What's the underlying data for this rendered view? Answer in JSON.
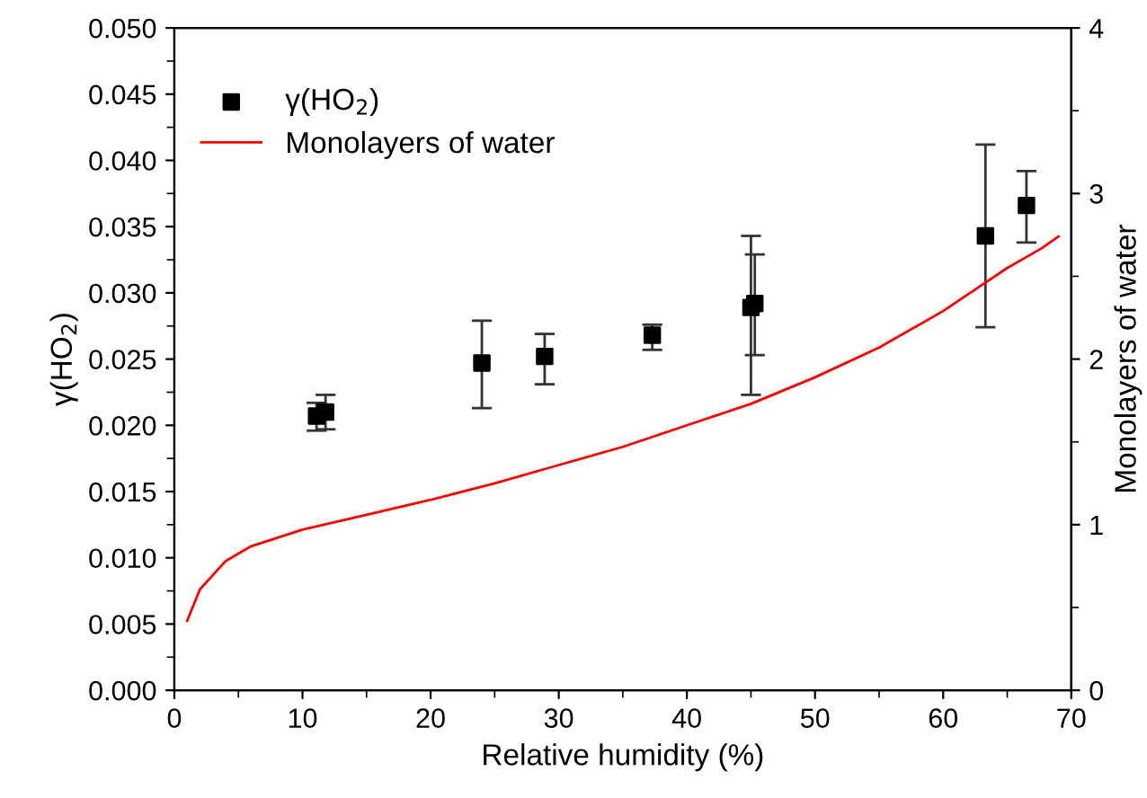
{
  "chart_data": {
    "type": "scatter",
    "xlabel": "Relative humidity (%)",
    "ylabel": "γ(HO$_{2}$)",
    "y2label": "Monolayers of water",
    "xlim": [
      0,
      70
    ],
    "xticks": [
      0,
      10,
      20,
      30,
      40,
      50,
      60,
      70
    ],
    "ylim": [
      0,
      0.05
    ],
    "yticks": [
      {
        "value": 0,
        "label": "0.000"
      },
      {
        "value": 0.005,
        "label": "0.005"
      },
      {
        "value": 0.01,
        "label": "0.010"
      },
      {
        "value": 0.015,
        "label": "0.015"
      },
      {
        "value": 0.02,
        "label": "0.020"
      },
      {
        "value": 0.025,
        "label": "0.025"
      },
      {
        "value": 0.03,
        "label": "0.030"
      },
      {
        "value": 0.035,
        "label": "0.035"
      },
      {
        "value": 0.04,
        "label": "0.040"
      },
      {
        "value": 0.045,
        "label": "0.045"
      },
      {
        "value": 0.05,
        "label": "0.050"
      }
    ],
    "y2lim": [
      0,
      4
    ],
    "y2ticks": [
      0,
      1,
      2,
      3,
      4
    ],
    "legend": "top left",
    "grid": false,
    "series": [
      {
        "name": "γ(HO$_{2}$)",
        "marker": "square",
        "color": "#000000",
        "x": [
          11.1,
          11.8,
          24.0,
          28.9,
          37.3,
          45.0,
          45.3,
          63.3,
          66.5
        ],
        "values": [
          0.0207,
          0.021,
          0.0247,
          0.0252,
          0.0268,
          0.0289,
          0.0292,
          0.0343,
          0.0366
        ],
        "errors": [
          [
            0.0196,
            0.0217
          ],
          [
            0.0197,
            0.0223
          ],
          [
            0.0213,
            0.0279
          ],
          [
            0.0231,
            0.0269
          ],
          [
            0.0257,
            0.0276
          ],
          [
            0.0223,
            0.0343
          ],
          [
            0.0253,
            0.0329
          ],
          [
            0.0274,
            0.0412
          ],
          [
            0.0338,
            0.0392
          ]
        ]
      },
      {
        "name": "Monolayers of water",
        "type": "line",
        "axis": "y2",
        "marker": "none",
        "line_style": "solid",
        "color": "#ff0000",
        "x": [
          1,
          2,
          4,
          6,
          10,
          15,
          20,
          25,
          30,
          35,
          40,
          45,
          50,
          55,
          60,
          62.5,
          65,
          67.7,
          69
        ],
        "values": [
          0.42,
          0.61,
          0.78,
          0.87,
          0.97,
          1.06,
          1.15,
          1.25,
          1.36,
          1.47,
          1.6,
          1.73,
          1.89,
          2.07,
          2.29,
          2.42,
          2.55,
          2.67,
          2.74
        ]
      }
    ]
  }
}
